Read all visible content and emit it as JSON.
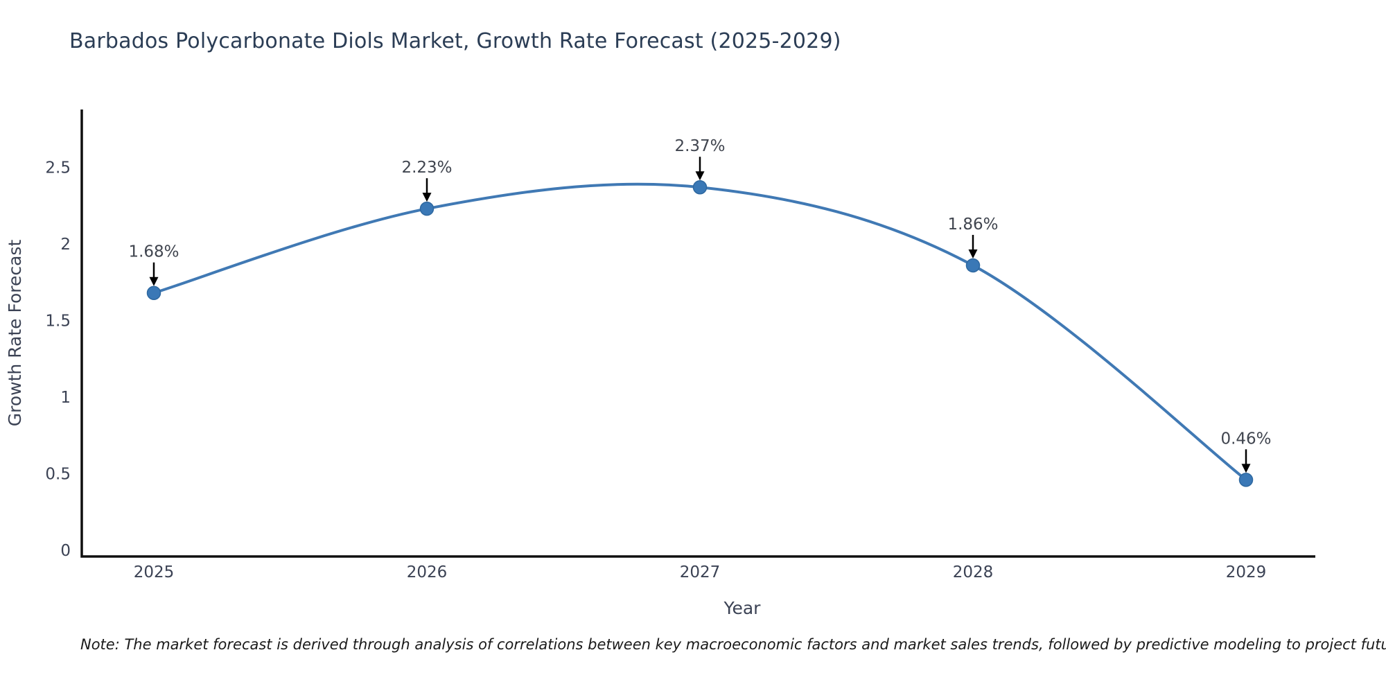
{
  "title": "Barbados Polycarbonate Diols Market, Growth Rate Forecast (2025-2029)",
  "note": "Note: The market forecast is derived through analysis of correlations between key macroeconomic factors and market sales trends, followed by predictive modeling to project future sales",
  "colors": {
    "line": "#4079b4",
    "marker_fill": "#3a78b6",
    "marker_edge": "#2e68a0",
    "axis_line": "#0f0f0f",
    "tick_text": "#3b4254",
    "axis_title_text": "#3b4254",
    "title_text": "#2b3d55",
    "annotation_text": "#40454f",
    "arrow": "#000000",
    "background": "#ffffff"
  },
  "chart_data": {
    "type": "line",
    "x": [
      2025,
      2026,
      2027,
      2028,
      2029
    ],
    "values": [
      1.68,
      2.23,
      2.37,
      1.86,
      0.46
    ],
    "point_labels": [
      "1.68%",
      "2.23%",
      "2.37%",
      "1.86%",
      "0.46%"
    ],
    "title": "Barbados Polycarbonate Diols Market, Growth Rate Forecast (2025-2029)",
    "xlabel": "Year",
    "ylabel": "Growth Rate Forecast",
    "ylim": [
      0,
      2.88
    ],
    "yticks": [
      0,
      0.5,
      1,
      1.5,
      2,
      2.5
    ],
    "grid": false,
    "legend": "none",
    "line_shape": "spline",
    "markers": true,
    "annotations_arrows": true
  }
}
